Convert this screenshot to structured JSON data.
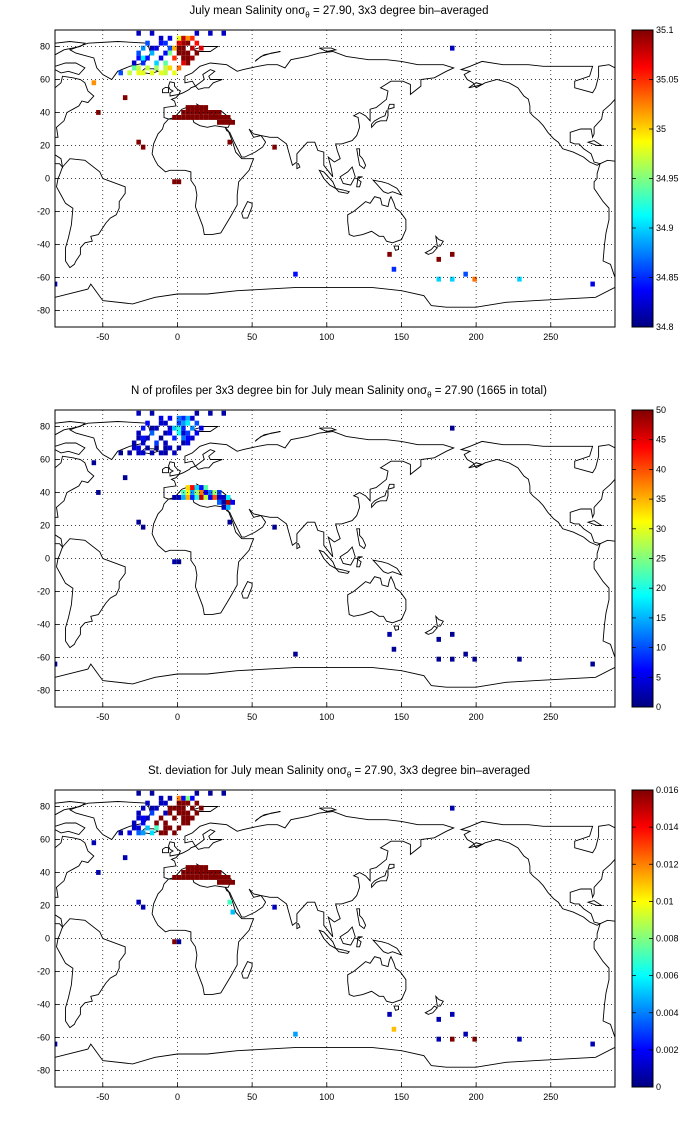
{
  "panels": [
    {
      "title_pre": "July mean Salinity on",
      "title_post": " = 27.90, 3x3 degree bin–averaged",
      "colorbar": {
        "min": 34.8,
        "max": 35.1,
        "ticks": [
          "35.1",
          "35.05",
          "35",
          "34.95",
          "34.9",
          "34.85",
          "34.8"
        ]
      }
    },
    {
      "title_pre": "N of profiles per 3x3 degree bin for July mean Salinity on",
      "title_post": " = 27.90 (1665 in total)",
      "colorbar": {
        "min": 0,
        "max": 50,
        "ticks": [
          "50",
          "45",
          "40",
          "35",
          "30",
          "25",
          "20",
          "15",
          "10",
          "5",
          "0"
        ]
      }
    },
    {
      "title_pre": "St. deviation for July mean Salinity on",
      "title_post": " = 27.90, 3x3 degree bin–averaged",
      "colorbar": {
        "min": 0,
        "max": 0.016,
        "ticks": [
          "0.016",
          "0.014",
          "0.012",
          "0.01",
          "0.008",
          "0.006",
          "0.004",
          "0.002",
          "0"
        ]
      }
    }
  ],
  "sigma_symbol": "σ",
  "sigma_sub": "θ",
  "x_axis": {
    "ticks": [
      "-50",
      "0",
      "50",
      "100",
      "150",
      "200",
      "250"
    ],
    "range": [
      -82,
      293
    ]
  },
  "y_axis": {
    "ticks": [
      "80",
      "60",
      "40",
      "20",
      "0",
      "-20",
      "-40",
      "-60",
      "-80"
    ],
    "range": [
      -90,
      90
    ]
  },
  "colormap": "jet",
  "grid": "dotted"
}
